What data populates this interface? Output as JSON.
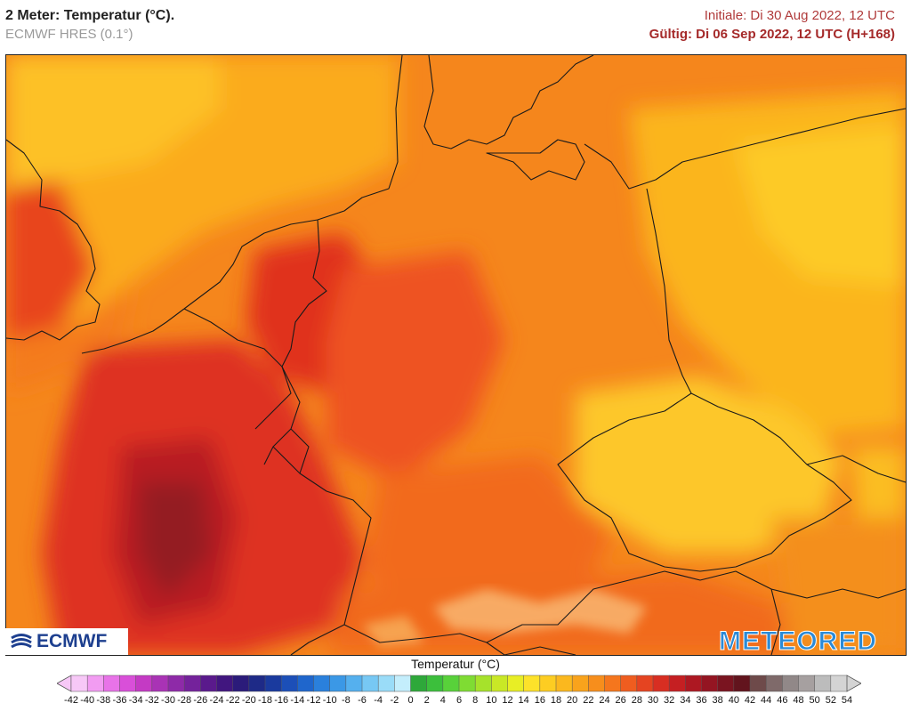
{
  "header": {
    "title": "2 Meter: Temperatur (°C).",
    "model": "ECMWF HRES (0.1°)",
    "init_time": "Initiale: Di 30 Aug 2022, 12 UTC",
    "valid_time": "Gültig: Di 06 Sep 2022, 12 UTC (H+168)"
  },
  "logos": {
    "left": "ECMWF",
    "right": "METEORED"
  },
  "legend": {
    "title": "Temperatur (°C)",
    "labels": [
      "-42",
      "-40",
      "-38",
      "-36",
      "-34",
      "-32",
      "-30",
      "-28",
      "-26",
      "-24",
      "-22",
      "-20",
      "-18",
      "-16",
      "-14",
      "-12",
      "-10",
      "-8",
      "-6",
      "-4",
      "-2",
      "0",
      "2",
      "4",
      "6",
      "8",
      "10",
      "12",
      "14",
      "16",
      "18",
      "20",
      "22",
      "24",
      "26",
      "28",
      "30",
      "32",
      "34",
      "36",
      "38",
      "40",
      "42",
      "44",
      "46",
      "48",
      "50",
      "52",
      "54"
    ],
    "colors": [
      "#f7c8f7",
      "#f29cf2",
      "#e873e8",
      "#d94fd9",
      "#c43ac4",
      "#a933b5",
      "#8e2aa8",
      "#74229b",
      "#5a1a8c",
      "#41167f",
      "#2b1b7a",
      "#1e2a87",
      "#1a3a9e",
      "#1c4fb8",
      "#1f66cc",
      "#2a80dc",
      "#3b98e6",
      "#55b0ee",
      "#77c8f4",
      "#9adcf8",
      "#c4eefc",
      "#2ea83a",
      "#3cbf3c",
      "#58d13a",
      "#7fdc33",
      "#a6e22b",
      "#c9e826",
      "#e8ee25",
      "#fde22a",
      "#fdcd22",
      "#fbb81e",
      "#f9a31c",
      "#f78e1c",
      "#f5761d",
      "#ef5d1f",
      "#e54421",
      "#d82e22",
      "#c51f22",
      "#ad1822",
      "#941522",
      "#7a1420",
      "#62141d",
      "#6e4a4a",
      "#7f6a6a",
      "#918888",
      "#a6a0a0",
      "#bcbcbc",
      "#d4d4d4"
    ]
  }
}
